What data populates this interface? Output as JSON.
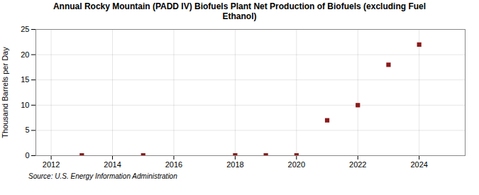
{
  "chart_data": {
    "type": "scatter",
    "title": "Annual Rocky Mountain (PADD IV) Biofuels Plant Net Production of Biofuels (excluding Fuel\nEthanol)",
    "ylabel": "Thousand Barrels per Day",
    "source": "Source: U.S. Energy Information Administration",
    "x": [
      2013,
      2015,
      2018,
      2019,
      2020,
      2021,
      2022,
      2023,
      2024
    ],
    "values": [
      0.05,
      0.05,
      0.05,
      0.05,
      0.05,
      7.0,
      10.0,
      18.0,
      22.0
    ],
    "color": "#8b1a1a",
    "marker": "square",
    "xlim": [
      2011.5,
      2025.5
    ],
    "xticks": [
      2012,
      2014,
      2016,
      2018,
      2020,
      2022,
      2024
    ],
    "ylim": [
      0,
      25
    ],
    "yticks": [
      0,
      5,
      10,
      15,
      20,
      25
    ],
    "grid": true
  }
}
